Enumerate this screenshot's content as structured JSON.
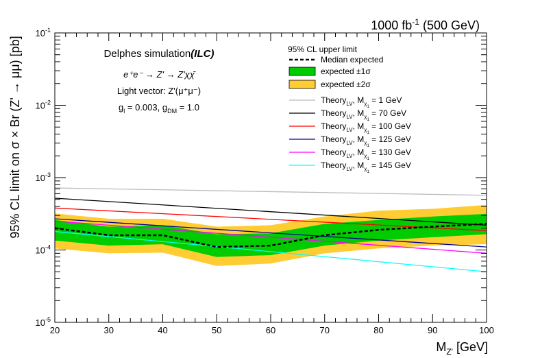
{
  "chart_data": {
    "type": "line",
    "title": "1000 fb-1 (500 GeV)",
    "title_parts": {
      "lumi": "1000 fb",
      "lumi_exp": "-1",
      "energy": "(500 GeV)"
    },
    "xlabel": "M_Z' [GeV]",
    "xlabel_parts": {
      "main": "M",
      "sub": "Z'",
      "unit": "[GeV]"
    },
    "ylabel": "95% CL limit on σ × Br (Z' → μμ) [pb]",
    "xlim": [
      20,
      100
    ],
    "ylim": [
      1e-05,
      0.1
    ],
    "yscale": "log",
    "x_ticks": [
      "20",
      "30",
      "40",
      "50",
      "60",
      "70",
      "80",
      "90",
      "100"
    ],
    "y_ticks": [
      {
        "value": 1e-05,
        "base": "10",
        "exp": "-5"
      },
      {
        "value": 0.0001,
        "base": "10",
        "exp": "-4"
      },
      {
        "value": 0.001,
        "base": "10",
        "exp": "-3"
      },
      {
        "value": 0.01,
        "base": "10",
        "exp": "-2"
      },
      {
        "value": 0.1,
        "base": "10",
        "exp": "-1"
      }
    ],
    "annotations": {
      "line1_main": "Delphes simulation",
      "line1_em": "(ILC)",
      "line2": "e⁺e⁻ → Z' → Z'χχ̄",
      "line3": "Light vector: Z'(μ⁺μ⁻)",
      "line4_parts": [
        "g",
        "l",
        " = 0.003, g",
        "DM",
        " = 1.0"
      ]
    },
    "legend": {
      "header": "95% CL upper limit",
      "median_label": "Median expected",
      "band1_label": "expected ±1σ",
      "band2_label": "expected ±2σ",
      "theory_prefix": "Theory",
      "theory_sub": "LV",
      "theory_mid": ", M",
      "theory_msub": "χ",
      "theory_msub2": "1"
    },
    "x": [
      20,
      30,
      40,
      50,
      60,
      70,
      80,
      90,
      100
    ],
    "expected": {
      "name": "Median expected",
      "color": "#000000",
      "values": [
        0.0002,
        0.00016,
        0.00016,
        0.00011,
        0.000115,
        0.00016,
        0.00019,
        0.00021,
        0.00023
      ]
    },
    "band_1sigma": {
      "name": "expected ±1σ",
      "color": "#00cc00",
      "lower": [
        0.000135,
        0.000115,
        0.00012,
        8e-05,
        8.5e-05,
        0.000115,
        0.000135,
        0.00015,
        0.000165
      ],
      "upper": [
        0.00026,
        0.00021,
        0.00022,
        0.000165,
        0.00017,
        0.00023,
        0.00026,
        0.00029,
        0.000315
      ]
    },
    "band_2sigma": {
      "name": "expected ±2σ",
      "color": "#ffcc33",
      "lower": [
        0.000105,
        9e-05,
        9.2e-05,
        6e-05,
        6.5e-05,
        9e-05,
        0.000105,
        0.000115,
        0.00012
      ],
      "upper": [
        0.00032,
        0.00027,
        0.00027,
        0.00021,
        0.00022,
        0.00029,
        0.00035,
        0.00037,
        0.00042
      ]
    },
    "series": [
      {
        "name": "Theory_LV, M_χ1 = 1 GeV",
        "mass_label": " = 1 GeV",
        "color": "#bbbbbb",
        "x": [
          20,
          100
        ],
        "values": [
          0.00072,
          0.00057
        ]
      },
      {
        "name": "Theory_LV, M_χ1 = 70 GeV",
        "mass_label": " = 70 GeV",
        "color": "#000000",
        "x": [
          20,
          100
        ],
        "values": [
          0.00052,
          0.00022
        ]
      },
      {
        "name": "Theory_LV, M_χ1 = 100 GeV",
        "mass_label": " = 100 GeV",
        "color": "#ff0000",
        "x": [
          20,
          100
        ],
        "values": [
          0.00038,
          0.000185
        ]
      },
      {
        "name": "Theory_LV, M_χ1 = 125 GeV",
        "mass_label": " = 125 GeV",
        "color": "#000099",
        "x": [
          20,
          100
        ],
        "values": [
          0.00027,
          0.00011
        ]
      },
      {
        "name": "Theory_LV, M_χ1 = 130 GeV",
        "mass_label": " = 130 GeV",
        "color": "#ff00ff",
        "x": [
          20,
          100
        ],
        "values": [
          0.00025,
          9e-05
        ]
      },
      {
        "name": "Theory_LV, M_χ1 = 145 GeV",
        "mass_label": " = 145 GeV",
        "color": "#00ffff",
        "x": [
          20,
          100
        ],
        "values": [
          0.00018,
          5e-05
        ]
      }
    ]
  }
}
